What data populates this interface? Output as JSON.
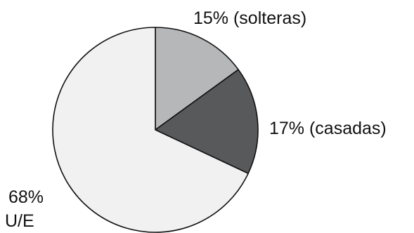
{
  "chart_data": {
    "type": "pie",
    "slices": [
      {
        "label": "15% (solteras)",
        "value": 15,
        "color": "#b5b7b8"
      },
      {
        "label": "17% (casadas)",
        "value": 17,
        "color": "#58595b"
      },
      {
        "label_lines": [
          "68%",
          "U/E"
        ],
        "value": 68,
        "color": "#f1f1f2"
      }
    ],
    "legend": "none",
    "stroke_color": "#111111"
  }
}
